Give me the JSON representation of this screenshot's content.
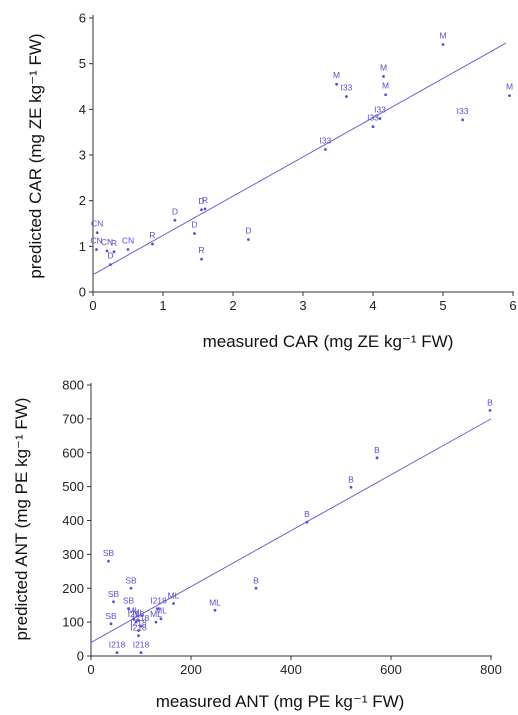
{
  "colors": {
    "points": "#5a4fcf",
    "line": "#6a62d6",
    "axis": "#333333",
    "text": "#222222"
  },
  "chart_data": [
    {
      "type": "scatter",
      "xlabel": "measured CAR (mg ZE kg⁻¹ FW)",
      "ylabel": "predicted CAR (mg ZE kg⁻¹ FW)",
      "xlim": [
        0,
        6
      ],
      "ylim": [
        0,
        6
      ],
      "xticks": [
        "0",
        "1",
        "2",
        "3",
        "4",
        "5",
        "6"
      ],
      "yticks": [
        "0",
        "1",
        "2",
        "3",
        "4",
        "5",
        "6"
      ],
      "regression_line": {
        "x": [
          0,
          5.9
        ],
        "y": [
          0.38,
          5.45
        ]
      },
      "points": [
        {
          "label": "CN",
          "x": 0.06,
          "y": 1.3
        },
        {
          "label": "CN",
          "x": 0.05,
          "y": 0.93
        },
        {
          "label": "CN",
          "x": 0.2,
          "y": 0.9
        },
        {
          "label": "R",
          "x": 0.3,
          "y": 0.88
        },
        {
          "label": "D",
          "x": 0.25,
          "y": 0.6
        },
        {
          "label": "CN",
          "x": 0.5,
          "y": 0.93
        },
        {
          "label": "R",
          "x": 0.85,
          "y": 1.05
        },
        {
          "label": "D",
          "x": 1.17,
          "y": 1.57
        },
        {
          "label": "D",
          "x": 1.45,
          "y": 1.28
        },
        {
          "label": "R",
          "x": 1.55,
          "y": 0.72
        },
        {
          "label": "D",
          "x": 1.55,
          "y": 1.8
        },
        {
          "label": "R",
          "x": 1.6,
          "y": 1.82
        },
        {
          "label": "D",
          "x": 2.22,
          "y": 1.15
        },
        {
          "label": "I33",
          "x": 3.32,
          "y": 3.12
        },
        {
          "label": "M",
          "x": 3.48,
          "y": 4.55
        },
        {
          "label": "I33",
          "x": 3.62,
          "y": 4.28
        },
        {
          "label": "I33",
          "x": 4.0,
          "y": 3.62
        },
        {
          "label": "I33",
          "x": 4.1,
          "y": 3.8
        },
        {
          "label": "M",
          "x": 4.15,
          "y": 4.72
        },
        {
          "label": "M",
          "x": 4.18,
          "y": 4.32
        },
        {
          "label": "M",
          "x": 5.0,
          "y": 5.42
        },
        {
          "label": "I33",
          "x": 5.28,
          "y": 3.77
        },
        {
          "label": "M",
          "x": 5.95,
          "y": 4.3
        }
      ]
    },
    {
      "type": "scatter",
      "xlabel": "measured ANT (mg PE kg⁻¹ FW)",
      "ylabel": "predicted ANT (mg PE kg⁻¹ FW)",
      "xlim": [
        0,
        800
      ],
      "ylim": [
        0,
        800
      ],
      "xticks": [
        "0",
        "200",
        "400",
        "600",
        "800"
      ],
      "yticks": [
        "0",
        "100",
        "200",
        "300",
        "400",
        "500",
        "600",
        "700",
        "800"
      ],
      "regression_line": {
        "x": [
          0,
          800
        ],
        "y": [
          40,
          700
        ]
      },
      "points": [
        {
          "label": "SB",
          "x": 35,
          "y": 280
        },
        {
          "label": "SB",
          "x": 80,
          "y": 200
        },
        {
          "label": "SB",
          "x": 45,
          "y": 160
        },
        {
          "label": "SB",
          "x": 75,
          "y": 140
        },
        {
          "label": "SB",
          "x": 40,
          "y": 95
        },
        {
          "label": "I218",
          "x": 52,
          "y": 10
        },
        {
          "label": "I218",
          "x": 95,
          "y": 60
        },
        {
          "label": "ML",
          "x": 85,
          "y": 110
        },
        {
          "label": "I218",
          "x": 90,
          "y": 100
        },
        {
          "label": "ML",
          "x": 95,
          "y": 105
        },
        {
          "label": "I218",
          "x": 100,
          "y": 88
        },
        {
          "label": "I218",
          "x": 95,
          "y": 75
        },
        {
          "label": "I218",
          "x": 100,
          "y": 10
        },
        {
          "label": "ML",
          "x": 130,
          "y": 100
        },
        {
          "label": "ML",
          "x": 140,
          "y": 110
        },
        {
          "label": "I218",
          "x": 135,
          "y": 140
        },
        {
          "label": "ML",
          "x": 165,
          "y": 155
        },
        {
          "label": "ML",
          "x": 248,
          "y": 135
        },
        {
          "label": "B",
          "x": 330,
          "y": 200
        },
        {
          "label": "B",
          "x": 432,
          "y": 395
        },
        {
          "label": "B",
          "x": 520,
          "y": 498
        },
        {
          "label": "B",
          "x": 572,
          "y": 585
        },
        {
          "label": "B",
          "x": 798,
          "y": 725
        }
      ]
    }
  ]
}
